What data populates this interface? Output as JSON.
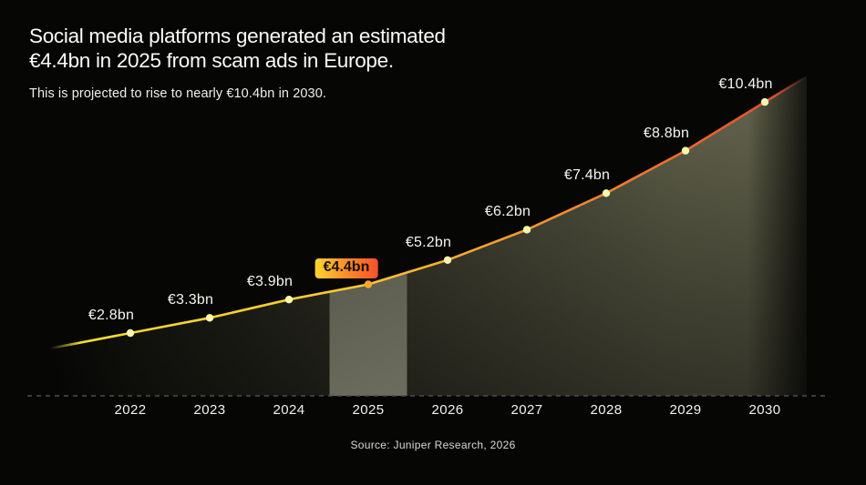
{
  "header": {
    "title_line1": "Social media platforms generated an estimated",
    "title_line2": "€4.4bn in 2025 from scam ads in Europe.",
    "subtitle": "This is projected to rise to nearly €10.4bn in 2030."
  },
  "source": "Source: Juniper Research, 2026",
  "chart_data": {
    "type": "area",
    "title": "Social media platforms generated an estimated €4.4bn in 2025 from scam ads in Europe.",
    "subtitle": "This is projected to rise to nearly €10.4bn in 2030.",
    "categories": [
      "2022",
      "2023",
      "2024",
      "2025",
      "2026",
      "2027",
      "2028",
      "2029",
      "2030"
    ],
    "values": [
      2.8,
      3.3,
      3.9,
      4.4,
      5.2,
      6.2,
      7.4,
      8.8,
      10.4
    ],
    "point_labels": [
      "€2.8bn",
      "€3.3bn",
      "€3.9bn",
      "€4.4bn",
      "€5.2bn",
      "€6.2bn",
      "€7.4bn",
      "€8.8bn",
      "€10.4bn"
    ],
    "unit": "€bn per year",
    "highlighted_category": "2025",
    "highlighted_label": "€4.4bn",
    "xlabel": "",
    "ylabel": "",
    "ylim": [
      0,
      11
    ],
    "grid": false,
    "legend": false,
    "colors": {
      "background": "#060605",
      "line_start": "#f2dc2e",
      "line_mid": "#f79a2d",
      "line_end": "#e2512a",
      "point": "#fbf7ad",
      "highlight_point": "#f8a828",
      "area": "#a5a580",
      "band": "#e8e8d0",
      "badge_gradient_start": "#ffd52e",
      "badge_gradient_mid": "#fb8c2b",
      "badge_gradient_end": "#f8502a",
      "axis_dash": "#4e4e49",
      "label_text": "#f6f4ec"
    }
  }
}
